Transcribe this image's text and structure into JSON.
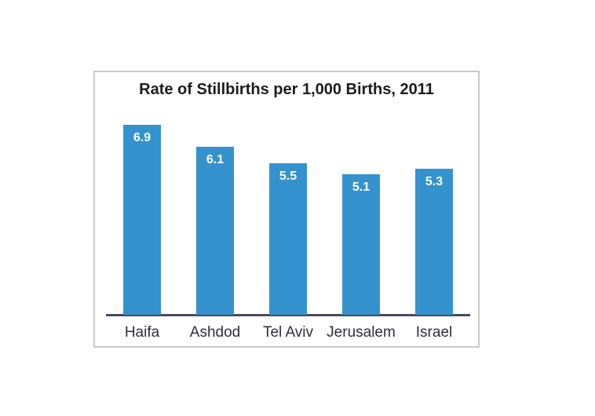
{
  "chart": {
    "colors": {
      "bar_fill": "#3492ce",
      "axis_line": "#4b4a60",
      "frame_border": "#c9c9c9",
      "title_text": "#1c1c1c",
      "category_text": "#2f2f3a",
      "value_label_text": "#ffffff",
      "background": "#ffffff"
    }
  },
  "chart_data": {
    "type": "bar",
    "title": "Rate of Stillbirths per 1,000 Births, 2011",
    "categories": [
      "Haifa",
      "Ashdod",
      "Tel Aviv",
      "Jerusalem",
      "Israel"
    ],
    "values": [
      6.9,
      6.1,
      5.5,
      5.1,
      5.3
    ],
    "xlabel": "",
    "ylabel": "",
    "ylim": [
      0,
      7.5
    ],
    "grid": false,
    "legend": false,
    "y_axis_visible": false,
    "data_labels": "inside-end"
  }
}
